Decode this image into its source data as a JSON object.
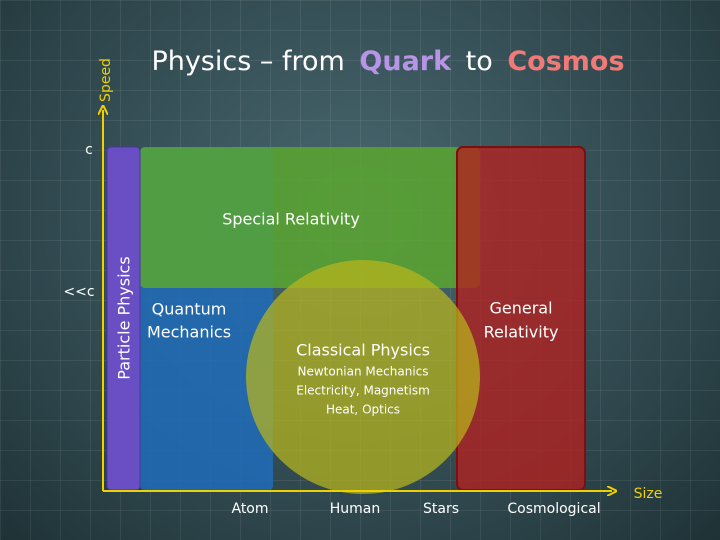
{
  "title": {
    "part_1": "Physics – from",
    "part_2": "Quark",
    "part_3": "to",
    "part_4": "Cosmos"
  },
  "axes": {
    "y_label": "Speed",
    "x_label": "Size",
    "y_ticks": [
      "c",
      "<<c"
    ],
    "x_ticks": [
      "Atom",
      "Human",
      "Stars",
      "Cosmological"
    ]
  },
  "regions": {
    "particle": {
      "label": "Particle Physics"
    },
    "special": {
      "label": "Special Relativity"
    },
    "quantum": {
      "lines": [
        "Quantum",
        "Mechanics"
      ]
    },
    "general": {
      "lines": [
        "General",
        "Relativity"
      ]
    },
    "classical": {
      "label": "Classical Physics",
      "details": [
        "Newtonian Mechanics",
        "Electricity, Magnetism",
        "Heat, Optics"
      ]
    }
  }
}
